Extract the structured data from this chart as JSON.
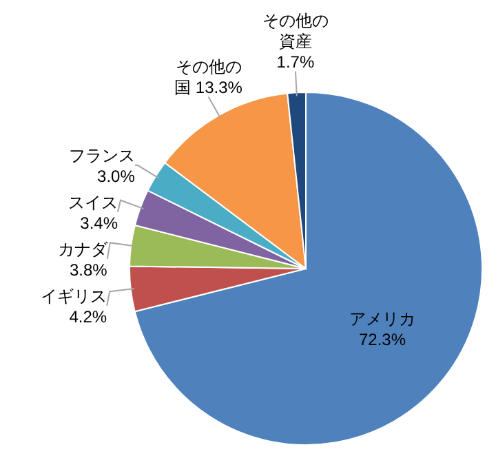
{
  "chart_data": {
    "type": "pie",
    "categories": [
      "アメリカ",
      "イギリス",
      "カナダ",
      "スイス",
      "フランス",
      "その他の国",
      "その他の資産"
    ],
    "values": [
      72.3,
      4.2,
      3.8,
      3.4,
      3.0,
      13.3,
      1.7
    ],
    "value_labels": [
      "72.3%",
      "4.2%",
      "3.8%",
      "3.4%",
      "3.0%",
      "13.3%",
      "1.7%"
    ],
    "colors": [
      "#4f81bd",
      "#c0504d",
      "#9bbb59",
      "#8064a2",
      "#4bacc6",
      "#f79646",
      "#1f497d"
    ],
    "legend": false
  }
}
